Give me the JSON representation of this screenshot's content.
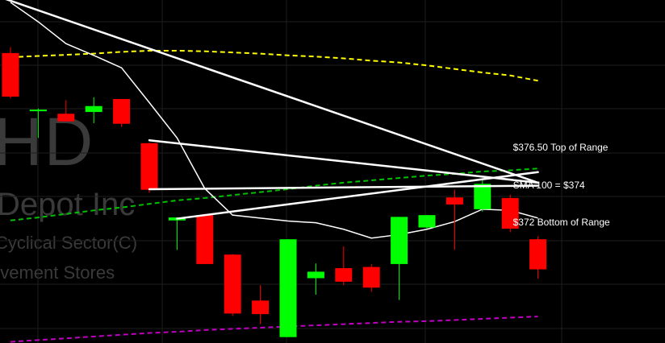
{
  "watermark": {
    "ticker": "HD",
    "name": "Depot Inc",
    "sector": "Cyclical Sector(C)",
    "industry": "ovement Stores"
  },
  "colors": {
    "background": "#000000",
    "up": "#00ff00",
    "down": "#ff0000",
    "grid": "#1e1e1e",
    "sma_short": "#ffffff",
    "sma_yellow": "#ffff00",
    "sma_green": "#00c000",
    "sma_magenta": "#c000c0",
    "trendline": "#ffffff"
  },
  "chart_data": {
    "type": "candlestick",
    "title": "",
    "ylim": [
      351.8,
      410.0
    ],
    "grid": true,
    "candles": [
      {
        "open": 401.0,
        "high": 402.0,
        "low": 393.3,
        "close": 393.6
      },
      {
        "open": 391.4,
        "high": 391.6,
        "low": 386.6,
        "close": 391.4
      },
      {
        "open": 390.7,
        "high": 393.0,
        "low": 389.4,
        "close": 389.4
      },
      {
        "open": 391.0,
        "high": 393.5,
        "low": 389.1,
        "close": 392.0
      },
      {
        "open": 393.2,
        "high": 393.2,
        "low": 388.5,
        "close": 389.0
      },
      {
        "open": 385.7,
        "high": 385.8,
        "low": 377.3,
        "close": 377.8
      },
      {
        "open": 372.6,
        "high": 373.1,
        "low": 367.6,
        "close": 373.1
      },
      {
        "open": 373.5,
        "high": 373.7,
        "low": 365.2,
        "close": 365.2
      },
      {
        "open": 366.8,
        "high": 366.9,
        "low": 356.4,
        "close": 356.8
      },
      {
        "open": 359.0,
        "high": 361.6,
        "low": 355.0,
        "close": 356.7
      },
      {
        "open": 352.8,
        "high": 369.4,
        "low": 352.8,
        "close": 369.4
      },
      {
        "open": 362.8,
        "high": 365.3,
        "low": 360.0,
        "close": 363.9
      },
      {
        "open": 364.5,
        "high": 368.2,
        "low": 361.6,
        "close": 362.2
      },
      {
        "open": 364.7,
        "high": 365.2,
        "low": 360.5,
        "close": 361.2
      },
      {
        "open": 365.2,
        "high": 373.2,
        "low": 359.1,
        "close": 373.2
      },
      {
        "open": 371.4,
        "high": 373.5,
        "low": 371.2,
        "close": 373.5
      },
      {
        "open": 376.5,
        "high": 377.8,
        "low": 367.6,
        "close": 375.3
      },
      {
        "open": 374.5,
        "high": 379.4,
        "low": 374.1,
        "close": 378.8
      },
      {
        "open": 376.4,
        "high": 377.0,
        "low": 370.6,
        "close": 371.2
      },
      {
        "open": 369.4,
        "high": 369.9,
        "low": 362.7,
        "close": 364.3
      }
    ],
    "sma_short": [
      409.6,
      406.3,
      402.6,
      400.6,
      398.5,
      392.6,
      386.6,
      378.0,
      373.5,
      373.0,
      372.5,
      372.2,
      371.1,
      369.6,
      370.2,
      371.1,
      372.4,
      374.5,
      374.3,
      373.0
    ],
    "sma_yellow": [
      400.3,
      400.5,
      400.7,
      400.9,
      401.2,
      401.4,
      401.4,
      401.3,
      401.1,
      400.9,
      400.6,
      400.4,
      400.1,
      399.7,
      399.4,
      398.9,
      398.3,
      397.7,
      397.2,
      396.3
    ],
    "sma_green": [
      372.6,
      373.1,
      373.7,
      374.3,
      374.8,
      375.4,
      376.0,
      376.4,
      376.9,
      377.4,
      377.9,
      378.5,
      379.0,
      379.4,
      379.8,
      380.2,
      380.5,
      380.9,
      381.1,
      381.4
    ],
    "sma_magenta": [
      352.0,
      352.3,
      352.6,
      352.9,
      353.2,
      353.5,
      353.7,
      354.0,
      354.2,
      354.4,
      354.6,
      354.8,
      355.0,
      355.2,
      355.4,
      355.5,
      355.7,
      355.9,
      356.1,
      356.3
    ],
    "trendlines": [
      {
        "from": [
          -0.2,
          410.2
        ],
        "to": [
          19.0,
          379.0
        ]
      },
      {
        "from": [
          5.0,
          386.2
        ],
        "to": [
          19.0,
          379.0
        ]
      },
      {
        "from": [
          5.0,
          377.9
        ],
        "to": [
          19.0,
          378.5
        ]
      },
      {
        "from": [
          6.0,
          372.9
        ],
        "to": [
          19.0,
          380.8
        ]
      }
    ],
    "annotations": [
      {
        "text": "$376.50 Top of Range",
        "index": 19,
        "value": 385.0
      },
      {
        "text": "SMA 100 = $374",
        "index": 19,
        "value": 378.6
      },
      {
        "text": "$372 Bottom of Range",
        "index": 19,
        "value": 372.3
      }
    ]
  }
}
